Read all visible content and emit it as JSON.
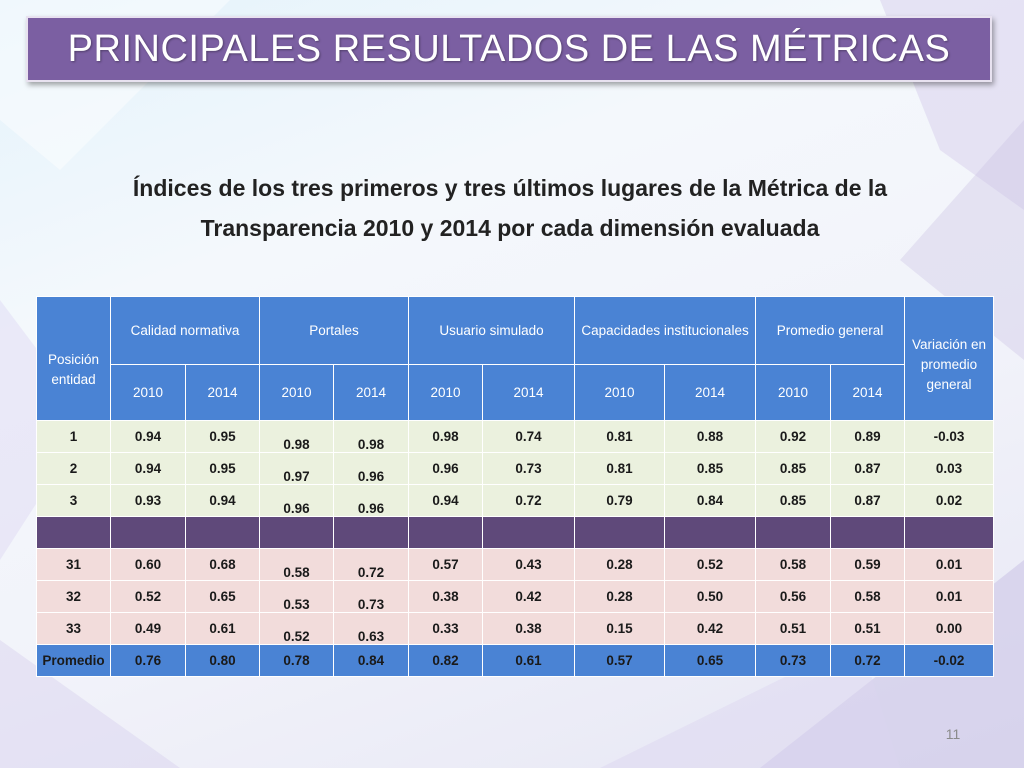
{
  "slide": {
    "title": "PRINCIPALES RESULTADOS DE LAS MÉTRICAS",
    "subtitle_line1": "Índices de los tres primeros y tres últimos  lugares de la Métrica de la",
    "subtitle_line2": "Transparencia 2010 y 2014 por cada dimensión evaluada",
    "page_number": "11"
  },
  "colors": {
    "title_bg": "#7b5fa2",
    "header_bg": "#4a83d4",
    "top_rows_bg": "#ebf1de",
    "bottom_rows_bg": "#f2dcdb",
    "separator_bg": "#5f497a"
  },
  "table": {
    "headers": {
      "position": "Posición entidad",
      "groups": [
        "Calidad normativa",
        "Portales",
        "Usuario simulado",
        "Capacidades institucionales",
        "Promedio general"
      ],
      "variation": "Variación en promedio general",
      "years": [
        "2010",
        "2014",
        "2010",
        "2014",
        "2010",
        "2014",
        "2010",
        "2014",
        "2010",
        "2014"
      ]
    },
    "top_rows": [
      [
        "1",
        "0.94",
        "0.95",
        "0.98",
        "0.98",
        "0.98",
        "0.74",
        "0.81",
        "0.88",
        "0.92",
        "0.89",
        "-0.03"
      ],
      [
        "2",
        "0.94",
        "0.95",
        "0.97",
        "0.96",
        "0.96",
        "0.73",
        "0.81",
        "0.85",
        "0.85",
        "0.87",
        "0.03"
      ],
      [
        "3",
        "0.93",
        "0.94",
        "0.96",
        "0.96",
        "0.94",
        "0.72",
        "0.79",
        "0.84",
        "0.85",
        "0.87",
        "0.02"
      ]
    ],
    "bottom_rows": [
      [
        "31",
        "0.60",
        "0.68",
        "0.58",
        "0.72",
        "0.57",
        "0.43",
        "0.28",
        "0.52",
        "0.58",
        "0.59",
        "0.01"
      ],
      [
        "32",
        "0.52",
        "0.65",
        "0.53",
        "0.73",
        "0.38",
        "0.42",
        "0.28",
        "0.50",
        "0.56",
        "0.58",
        "0.01"
      ],
      [
        "33",
        "0.49",
        "0.61",
        "0.52",
        "0.63",
        "0.33",
        "0.38",
        "0.15",
        "0.42",
        "0.51",
        "0.51",
        "0.00"
      ]
    ],
    "average_row": [
      "Promedio",
      "0.76",
      "0.80",
      "0.78",
      "0.84",
      "0.82",
      "0.61",
      "0.57",
      "0.65",
      "0.73",
      "0.72",
      "-0.02"
    ]
  }
}
